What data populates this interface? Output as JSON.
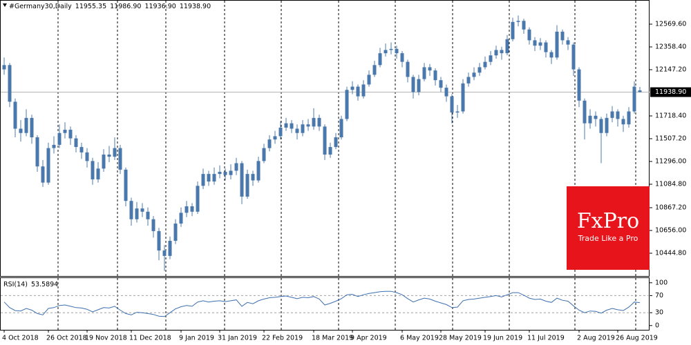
{
  "chart_data": [
    {
      "type": "candlestick",
      "title": "#Germany30,Daily",
      "quote_labels": [
        "11955.35",
        "11986.90",
        "11936.90",
        "11938.90"
      ],
      "color": "#4a78ad",
      "categories": [
        "4 Oct 2018",
        null,
        null,
        null,
        null,
        null,
        null,
        null,
        "26 Oct 2018",
        null,
        null,
        null,
        null,
        null,
        null,
        "19 Nov 2018",
        null,
        null,
        null,
        null,
        null,
        null,
        null,
        "11 Dec 2018",
        null,
        null,
        null,
        null,
        null,
        null,
        null,
        null,
        "9 Jan 2019",
        null,
        null,
        null,
        null,
        null,
        null,
        "31 Jan 2019",
        null,
        null,
        null,
        null,
        null,
        null,
        null,
        "22 Feb 2019",
        null,
        null,
        null,
        null,
        null,
        null,
        null,
        null,
        "18 Mar 2019",
        null,
        null,
        null,
        null,
        null,
        null,
        "9 Apr 2019",
        null,
        null,
        null,
        null,
        null,
        null,
        null,
        null,
        "6 May 2019",
        null,
        null,
        null,
        null,
        null,
        null,
        "28 May 2019",
        null,
        null,
        null,
        null,
        null,
        null,
        null,
        "19 Jun 2019",
        null,
        null,
        null,
        null,
        null,
        null,
        null,
        "11 Jul 2019",
        null,
        null,
        null,
        null,
        null,
        null,
        null,
        null,
        "2 Aug 2019",
        null,
        null,
        null,
        null,
        null,
        null,
        "26 Aug 2019",
        null,
        null,
        null,
        null
      ],
      "open": [
        12150,
        12190,
        11850,
        11600,
        11560,
        11700,
        11520,
        11250,
        11100,
        11420,
        11450,
        11560,
        11590,
        11510,
        11430,
        11380,
        11300,
        11130,
        11230,
        11360,
        11340,
        11420,
        11220,
        10930,
        10760,
        10860,
        10830,
        10760,
        10650,
        10470,
        10420,
        10560,
        10720,
        10820,
        10880,
        10830,
        11070,
        11180,
        11110,
        11180,
        11200,
        11170,
        11210,
        11280,
        10970,
        11180,
        11120,
        11300,
        11420,
        11500,
        11530,
        11610,
        11650,
        11600,
        11560,
        11640,
        11620,
        11700,
        11620,
        11360,
        11430,
        11520,
        11690,
        11960,
        11990,
        11900,
        12010,
        12100,
        12190,
        12300,
        12330,
        12340,
        12300,
        12220,
        12080,
        11940,
        12060,
        12170,
        12140,
        12050,
        11980,
        11900,
        11750,
        11760,
        12020,
        12080,
        12120,
        12170,
        12220,
        12280,
        12330,
        12300,
        12430,
        12590,
        12600,
        12520,
        12420,
        12370,
        12400,
        12310,
        12260,
        12500,
        12420,
        12380,
        12150,
        11860,
        11650,
        11720,
        11690,
        11560,
        11700,
        11760,
        11690,
        11640,
        11760,
        11955.35
      ],
      "high": [
        12260,
        12210,
        11880,
        11680,
        11780,
        11730,
        11540,
        11310,
        11470,
        11530,
        11640,
        11660,
        11620,
        11540,
        11470,
        11420,
        11330,
        11290,
        11410,
        11440,
        11520,
        11450,
        11240,
        10960,
        10920,
        10910,
        10870,
        10790,
        10680,
        10520,
        10600,
        10760,
        10870,
        10930,
        10910,
        11110,
        11230,
        11210,
        11240,
        11260,
        11230,
        11270,
        11330,
        11300,
        11220,
        11210,
        11340,
        11460,
        11540,
        11580,
        11670,
        11700,
        11680,
        11640,
        11680,
        11690,
        11790,
        11730,
        11640,
        11470,
        11560,
        11720,
        11990,
        12040,
        12010,
        12050,
        12140,
        12230,
        12350,
        12390,
        12400,
        12370,
        12320,
        12240,
        12100,
        12100,
        12210,
        12200,
        12160,
        12080,
        12010,
        11920,
        11820,
        12060,
        12120,
        12170,
        12210,
        12270,
        12320,
        12370,
        12360,
        12470,
        12630,
        12650,
        12620,
        12540,
        12450,
        12440,
        12420,
        12330,
        12560,
        12520,
        12450,
        12400,
        12170,
        11880,
        11780,
        11760,
        11710,
        11740,
        11810,
        11780,
        11720,
        11800,
        12040,
        11986.9
      ],
      "low": [
        12100,
        11800,
        11520,
        11480,
        11530,
        11460,
        11200,
        11060,
        11080,
        11370,
        11420,
        11510,
        11450,
        11380,
        11320,
        11240,
        11080,
        11100,
        11200,
        11290,
        11310,
        11180,
        10880,
        10700,
        10730,
        10780,
        10700,
        10590,
        10380,
        10280,
        10390,
        10530,
        10690,
        10780,
        10790,
        10810,
        11040,
        11070,
        11080,
        11140,
        11120,
        11130,
        11170,
        10900,
        10950,
        11070,
        11100,
        11280,
        11390,
        11460,
        11500,
        11580,
        11560,
        11500,
        11530,
        11580,
        11590,
        11580,
        11310,
        11330,
        11410,
        11500,
        11670,
        11920,
        11860,
        11880,
        11990,
        12080,
        12170,
        12270,
        12290,
        12250,
        12170,
        12030,
        11880,
        11910,
        12040,
        12090,
        12000,
        11940,
        11850,
        11650,
        11700,
        11740,
        11990,
        12050,
        12090,
        12150,
        12190,
        12250,
        12240,
        12280,
        12410,
        12550,
        12480,
        12380,
        12320,
        12330,
        12260,
        12200,
        12240,
        12380,
        12330,
        12090,
        11800,
        11500,
        11600,
        11620,
        11280,
        11530,
        11660,
        11620,
        11570,
        11610,
        11740,
        11936.9
      ],
      "close": [
        12190,
        11850,
        11600,
        11560,
        11700,
        11520,
        11250,
        11100,
        11420,
        11450,
        11560,
        11590,
        11510,
        11430,
        11380,
        11300,
        11130,
        11230,
        11360,
        11340,
        11420,
        11220,
        10930,
        10760,
        10860,
        10830,
        10760,
        10650,
        10470,
        10420,
        10560,
        10720,
        10820,
        10880,
        10830,
        11070,
        11180,
        11110,
        11180,
        11200,
        11170,
        11210,
        11280,
        10970,
        11180,
        11120,
        11300,
        11420,
        11500,
        11530,
        11610,
        11650,
        11600,
        11560,
        11640,
        11620,
        11700,
        11620,
        11360,
        11430,
        11520,
        11690,
        11960,
        11990,
        11900,
        12010,
        12100,
        12190,
        12300,
        12330,
        12340,
        12300,
        12220,
        12080,
        11940,
        12060,
        12170,
        12140,
        12050,
        11980,
        11900,
        11750,
        11760,
        12020,
        12080,
        12120,
        12170,
        12220,
        12280,
        12330,
        12300,
        12430,
        12590,
        12600,
        12520,
        12420,
        12370,
        12400,
        12310,
        12260,
        12500,
        12420,
        12380,
        12150,
        11860,
        11650,
        11720,
        11690,
        11560,
        11700,
        11760,
        11690,
        11640,
        11760,
        11990,
        11938.9
      ],
      "ylim": [
        10233.6,
        12761.6
      ],
      "yticks": [
        {
          "value": 10444.8,
          "label": "10444.80"
        },
        {
          "value": 10656,
          "label": "10656.00"
        },
        {
          "value": 10867.2,
          "label": "10867.20"
        },
        {
          "value": 11084.8,
          "label": "11084.80"
        },
        {
          "value": 11296,
          "label": "11296.00"
        },
        {
          "value": 11507.2,
          "label": "11507.20"
        },
        {
          "value": 11718.4,
          "label": "11718.40"
        },
        {
          "value": 12147.2,
          "label": "12147.20"
        },
        {
          "value": 12358.4,
          "label": "12358.40"
        },
        {
          "value": 12569.6,
          "label": "12569.60"
        }
      ],
      "current_price": {
        "value": 11938.9,
        "label": "11938.90"
      },
      "watermark": {
        "brand": "FxPro",
        "tagline": "Trade Like a Pro"
      }
    },
    {
      "type": "line",
      "title": "RSI(14)",
      "color": "#3d6fb0",
      "values": [
        55,
        42,
        35,
        34,
        40,
        36,
        28,
        25,
        40,
        42,
        47,
        48,
        45,
        42,
        41,
        38,
        32,
        37,
        42,
        41,
        45,
        36,
        28,
        25,
        31,
        30,
        28,
        26,
        22,
        21,
        30,
        39,
        44,
        47,
        45,
        55,
        58,
        55,
        57,
        58,
        56,
        58,
        60,
        45,
        54,
        51,
        58,
        62,
        65,
        66,
        68,
        69,
        66,
        63,
        66,
        65,
        68,
        62,
        48,
        52,
        57,
        63,
        72,
        73,
        68,
        72,
        75,
        77,
        79,
        80,
        80,
        77,
        72,
        63,
        55,
        60,
        64,
        62,
        57,
        53,
        49,
        42,
        43,
        58,
        61,
        62,
        64,
        66,
        68,
        70,
        67,
        72,
        77,
        77,
        71,
        64,
        61,
        62,
        57,
        54,
        64,
        59,
        57,
        46,
        36,
        30,
        34,
        33,
        29,
        36,
        40,
        37,
        35,
        43,
        55,
        53.5894
      ],
      "ylim": [
        -10,
        111
      ],
      "yticks": [
        0,
        30,
        70,
        100
      ],
      "levels": [
        30,
        70
      ]
    }
  ]
}
